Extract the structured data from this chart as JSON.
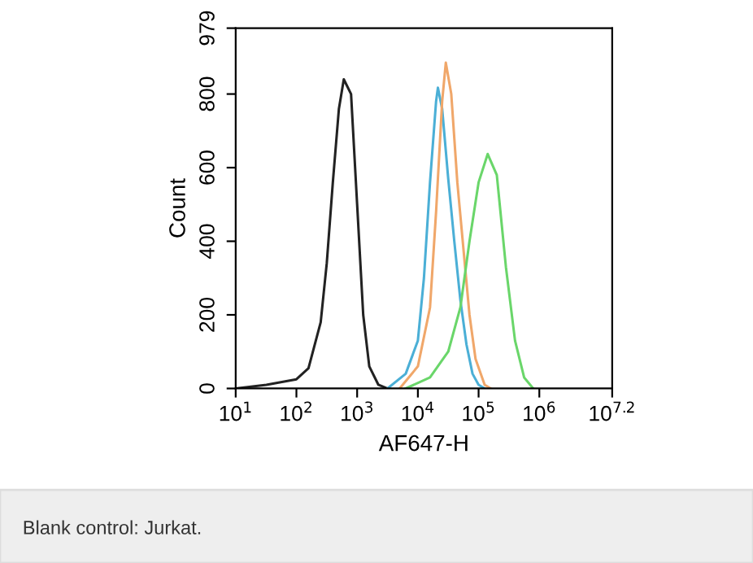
{
  "chart_data": {
    "type": "line",
    "xlabel": "AF647-H",
    "ylabel": "Count",
    "log": "x",
    "xlim": [
      10,
      15848932
    ],
    "xticks": [
      {
        "value": 10,
        "label": "10$^{1}$"
      },
      {
        "value": 100,
        "label": "10$^{2}$"
      },
      {
        "value": 1000,
        "label": "10$^{3}$"
      },
      {
        "value": 10000,
        "label": "10$^{4}$"
      },
      {
        "value": 100000,
        "label": "10$^{5}$"
      },
      {
        "value": 1000000,
        "label": "10$^{6}$"
      },
      {
        "value": 15848932,
        "label": "10$^{7.2}$"
      }
    ],
    "ylim": [
      0,
      979
    ],
    "yticks": [
      0,
      200,
      400,
      600,
      800,
      979
    ],
    "grid": false,
    "legend": false,
    "marker": "none",
    "line_style": "solid",
    "annotations": [
      "Blank control: Jurkat."
    ],
    "series": [
      {
        "color": "#222222",
        "x": [
          10,
          32,
          100,
          158,
          251,
          316,
          398,
          501,
          603,
          794,
          1000,
          1259,
          1585,
          2239,
          3162
        ],
        "values": [
          0,
          10,
          25,
          55,
          180,
          340,
          560,
          760,
          840,
          800,
          500,
          200,
          60,
          10,
          0
        ]
      },
      {
        "color": "#4bafd6",
        "x": [
          3162,
          6310,
          10000,
          12589,
          15849,
          19953,
          21380,
          25119,
          31623,
          39811,
          50119,
          63096,
          79433,
          100000,
          125893
        ],
        "values": [
          0,
          40,
          130,
          300,
          560,
          780,
          817,
          760,
          570,
          400,
          240,
          120,
          40,
          10,
          0
        ]
      },
      {
        "color": "#f0a76a",
        "x": [
          5012,
          10000,
          15849,
          19953,
          25119,
          28840,
          35481,
          44668,
          56234,
          70795,
          89125,
          125893,
          158489
        ],
        "values": [
          0,
          60,
          220,
          480,
          780,
          885,
          800,
          560,
          380,
          200,
          80,
          10,
          0
        ]
      },
      {
        "color": "#6ad66a",
        "x": [
          6310,
          15849,
          31623,
          50119,
          70795,
          100000,
          141254,
          199526,
          281838,
          398107,
          562341,
          794328
        ],
        "values": [
          0,
          30,
          100,
          220,
          400,
          560,
          637,
          580,
          330,
          130,
          30,
          0
        ]
      }
    ]
  }
}
